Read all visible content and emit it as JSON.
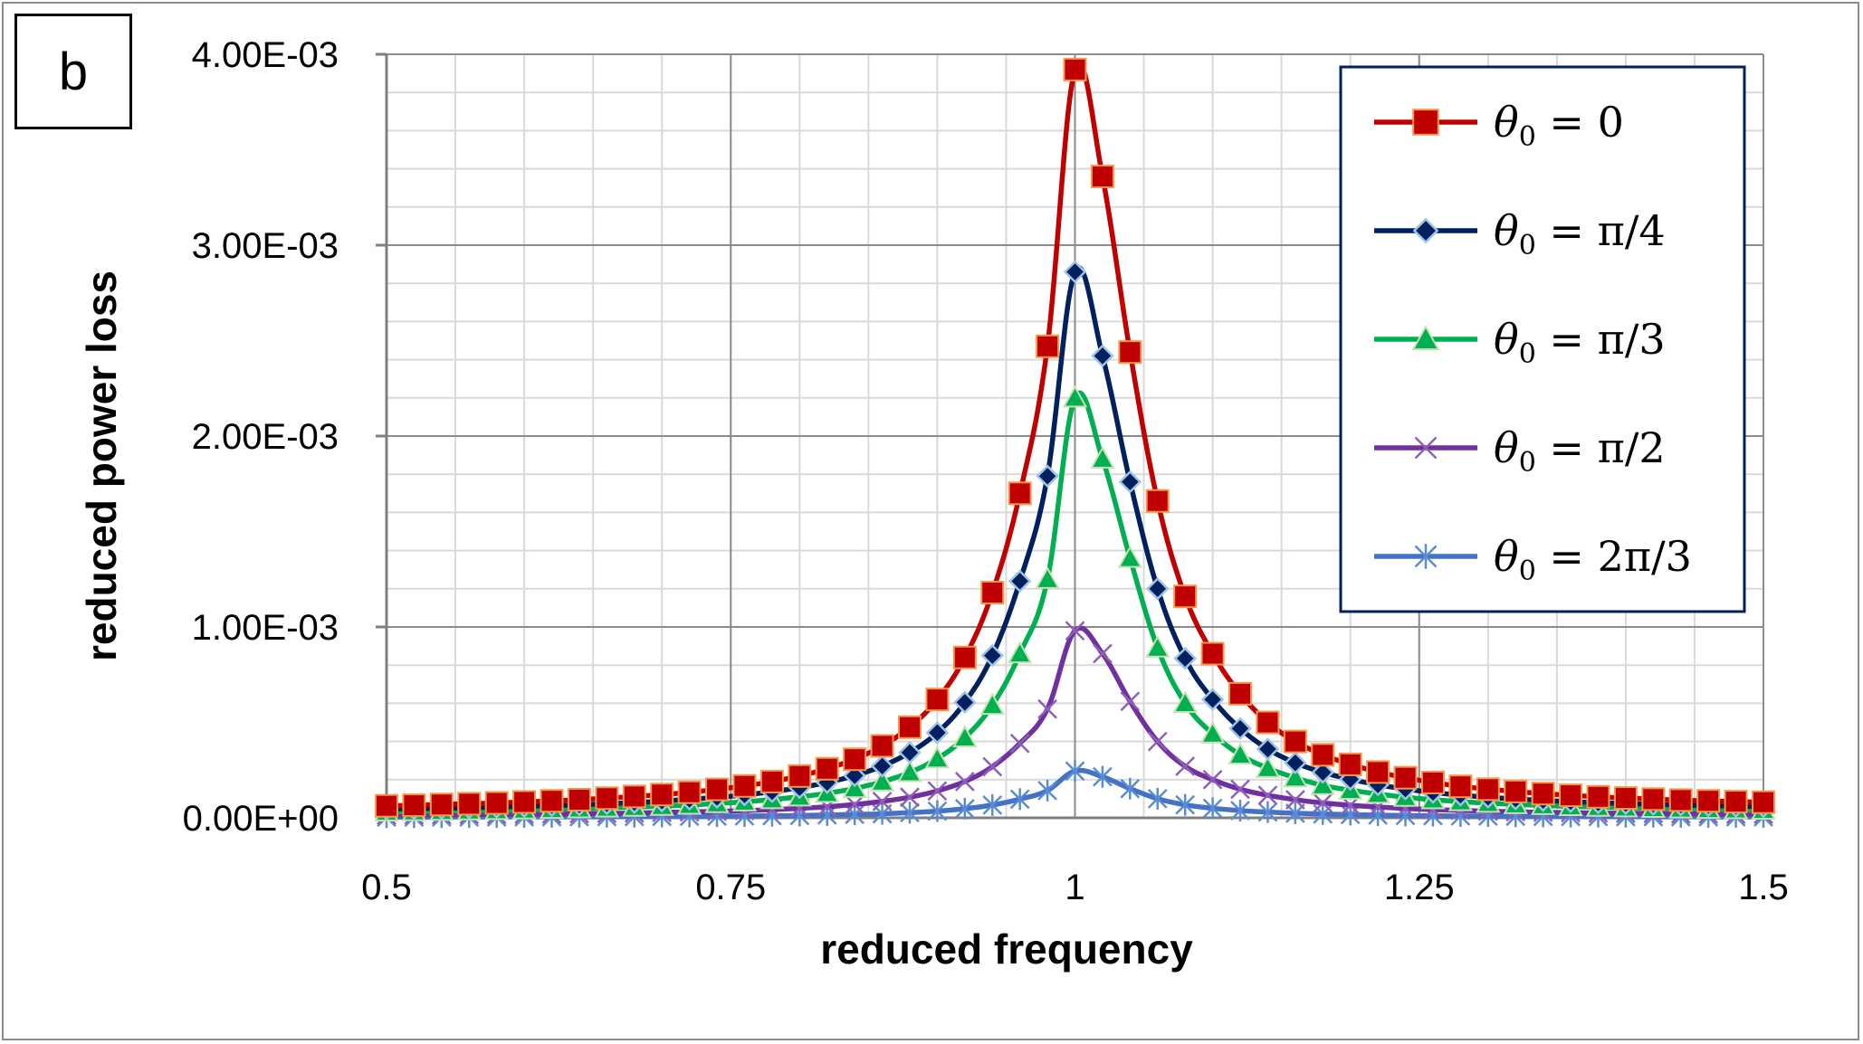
{
  "panel_label": "b",
  "chart_data": {
    "type": "line",
    "xlabel": "reduced frequency",
    "ylabel": "reduced power loss",
    "xlim": [
      0.5,
      1.5
    ],
    "ylim": [
      0,
      0.004
    ],
    "x_ticks": [
      {
        "value": 0.5,
        "label": "0.5"
      },
      {
        "value": 0.75,
        "label": "0.75"
      },
      {
        "value": 1.0,
        "label": "1"
      },
      {
        "value": 1.25,
        "label": "1.25"
      },
      {
        "value": 1.5,
        "label": "1.5"
      }
    ],
    "y_ticks": [
      {
        "value": 0,
        "label": "0.00E+00"
      },
      {
        "value": 0.001,
        "label": "1.00E-03"
      },
      {
        "value": 0.002,
        "label": "2.00E-03"
      },
      {
        "value": 0.003,
        "label": "3.00E-03"
      },
      {
        "value": 0.004,
        "label": "4.00E-03"
      }
    ],
    "grid": true,
    "legend_position": "top-right",
    "x": [
      0.5,
      0.52,
      0.54,
      0.56,
      0.58,
      0.6,
      0.62,
      0.64,
      0.66,
      0.68,
      0.7,
      0.72,
      0.74,
      0.76,
      0.78,
      0.8,
      0.82,
      0.84,
      0.86,
      0.88,
      0.9,
      0.92,
      0.94,
      0.96,
      0.98,
      1.0,
      1.02,
      1.04,
      1.06,
      1.08,
      1.1,
      1.12,
      1.14,
      1.16,
      1.18,
      1.2,
      1.22,
      1.24,
      1.26,
      1.28,
      1.3,
      1.32,
      1.34,
      1.36,
      1.38,
      1.4,
      1.42,
      1.44,
      1.46,
      1.48,
      1.5
    ],
    "series": [
      {
        "name": "θ0 = 0",
        "name_symbol": "θ",
        "name_subscript": "0",
        "name_rest": " = 0",
        "color": "#c00000",
        "marker": "square",
        "marker_fill": "#c00000",
        "marker_stroke": "#f79646",
        "values": [
          6.3e-05,
          6.6e-05,
          7e-05,
          7.4e-05,
          7.8e-05,
          8.3e-05,
          8.9e-05,
          9.5e-05,
          0.000103,
          0.000112,
          0.000122,
          0.000134,
          0.000149,
          0.000167,
          0.00019,
          0.000219,
          0.000257,
          0.000307,
          0.000377,
          0.000475,
          0.00062,
          0.00084,
          0.00118,
          0.0017,
          0.00247,
          0.00392,
          0.00336,
          0.00244,
          0.00166,
          0.00116,
          0.00086,
          0.00065,
          0.0005,
          0.0004,
          0.00033,
          0.00028,
          0.00024,
          0.00021,
          0.000185,
          0.000165,
          0.00015,
          0.000138,
          0.000127,
          0.000118,
          0.00011,
          0.000104,
          9.8e-05,
          9.3e-05,
          8.9e-05,
          8.5e-05,
          8.2e-05
        ]
      },
      {
        "name": "θ0 = π/4",
        "name_symbol": "θ",
        "name_subscript": "0",
        "name_rest": "  = π/4",
        "color": "#002060",
        "marker": "diamond",
        "marker_fill": "#002060",
        "marker_stroke": "#9dc3e6",
        "values": [
          4.5e-05,
          4.8e-05,
          5e-05,
          5.3e-05,
          5.6e-05,
          6e-05,
          6.4e-05,
          6.8e-05,
          7.4e-05,
          8e-05,
          8.8e-05,
          9.7e-05,
          0.000107,
          0.00012,
          0.000137,
          0.000158,
          0.000185,
          0.000221,
          0.000271,
          0.000342,
          0.000446,
          0.000605,
          0.00085,
          0.00124,
          0.00179,
          0.00286,
          0.00242,
          0.00176,
          0.0012,
          0.000835,
          0.00062,
          0.000468,
          0.00036,
          0.000288,
          0.000238,
          0.000202,
          0.000173,
          0.000151,
          0.000133,
          0.000119,
          0.000108,
          9.9e-05,
          9.1e-05,
          8.5e-05,
          7.9e-05,
          7.5e-05,
          7.1e-05,
          6.7e-05,
          6.4e-05,
          6.1e-05,
          5.9e-05
        ]
      },
      {
        "name": "θ0 = π/3",
        "name_symbol": "θ",
        "name_subscript": "0",
        "name_rest": "  = π/3",
        "color": "#00b050",
        "marker": "triangle",
        "marker_fill": "#00b050",
        "marker_stroke": "#c5e0b4",
        "values": [
          3.1e-05,
          3.3e-05,
          3.5e-05,
          3.7e-05,
          3.9e-05,
          4.2e-05,
          4.5e-05,
          4.8e-05,
          5.2e-05,
          5.6e-05,
          6.1e-05,
          6.7e-05,
          7.5e-05,
          8.4e-05,
          9.6e-05,
          0.00011,
          0.000129,
          0.000154,
          0.000189,
          0.000238,
          0.00031,
          0.00042,
          0.00059,
          0.00086,
          0.00125,
          0.0022,
          0.00188,
          0.00136,
          0.00089,
          0.0006,
          0.00044,
          0.00033,
          0.00026,
          0.00021,
          0.00017,
          0.000145,
          0.000125,
          0.000108,
          9.5e-05,
          8.5e-05,
          7.7e-05,
          7e-05,
          6.5e-05,
          6e-05,
          5.6e-05,
          5.3e-05,
          5e-05,
          4.7e-05,
          4.5e-05,
          4.3e-05,
          4.1e-05
        ]
      },
      {
        "name": "θ0 = π/2",
        "name_symbol": "θ",
        "name_subscript": "0",
        "name_rest": "  = π/2",
        "color": "#7030a0",
        "marker": "x",
        "marker_fill": "none",
        "marker_stroke": "#8e5fb8",
        "values": [
          1.4e-05,
          1.5e-05,
          1.6e-05,
          1.7e-05,
          1.8e-05,
          1.9e-05,
          2e-05,
          2.2e-05,
          2.3e-05,
          2.5e-05,
          2.8e-05,
          3.1e-05,
          3.4e-05,
          3.8e-05,
          4.3e-05,
          5e-05,
          5.8e-05,
          7e-05,
          8.6e-05,
          0.000108,
          0.000141,
          0.00019,
          0.000268,
          0.00039,
          0.00057,
          0.00098,
          0.00086,
          0.00061,
          0.0004,
          0.00027,
          0.0002,
          0.00015,
          0.000118,
          9.5e-05,
          7.8e-05,
          6.6e-05,
          5.7e-05,
          4.9e-05,
          4.3e-05,
          3.9e-05,
          3.5e-05,
          3.2e-05,
          2.9e-05,
          2.7e-05,
          2.5e-05,
          2.4e-05,
          2.3e-05,
          2.1e-05,
          2e-05,
          1.9e-05,
          1.9e-05
        ]
      },
      {
        "name": "θ0 = 2π/3",
        "name_symbol": "θ",
        "name_subscript": "0",
        "name_rest": "  = 2π/3",
        "color": "#4472c4",
        "marker": "asterisk",
        "marker_fill": "none",
        "marker_stroke": "#5b8bd6",
        "values": [
          3.5e-06,
          3.7e-06,
          3.9e-06,
          4.2e-06,
          4.4e-06,
          4.7e-06,
          5.1e-06,
          5.4e-06,
          5.8e-06,
          6.3e-06,
          6.9e-06,
          7.6e-06,
          8.5e-06,
          9.5e-06,
          1.1e-05,
          1.2e-05,
          1.5e-05,
          1.8e-05,
          2.1e-05,
          2.7e-05,
          3.5e-05,
          4.8e-05,
          6.7e-05,
          9.8e-05,
          0.000143,
          0.000245,
          0.000215,
          0.000153,
          0.0001,
          6.8e-05,
          5e-05,
          3.8e-05,
          3e-05,
          2.4e-05,
          2e-05,
          1.7e-05,
          1.4e-05,
          1.2e-05,
          1.1e-05,
          9.7e-06,
          8.8e-06,
          8e-06,
          7.3e-06,
          6.8e-06,
          6.3e-06,
          5.9e-06,
          5.6e-06,
          5.3e-06,
          5e-06,
          4.8e-06,
          4.6e-06
        ]
      }
    ]
  }
}
